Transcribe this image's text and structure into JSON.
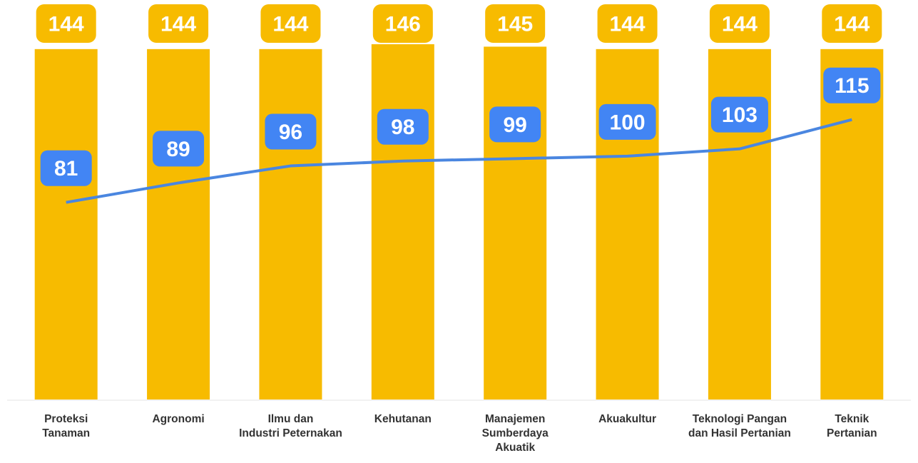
{
  "chart_data": {
    "type": "bar",
    "categories": [
      "Proteksi Tanaman",
      "Agronomi",
      "Ilmu dan Industri Peternakan",
      "Kehutanan",
      "Manajemen Sumberdaya Akuatik",
      "Akuakultur",
      "Teknologi Pangan dan Hasil Pertanian",
      "Teknik Pertanian"
    ],
    "series": [
      {
        "type": "bar",
        "color": "#f7bb00",
        "values": [
          144,
          144,
          144,
          146,
          145,
          144,
          144,
          144
        ]
      },
      {
        "type": "line",
        "color": "#4a86e0",
        "values": [
          81,
          89,
          96,
          98,
          99,
          100,
          103,
          115
        ]
      }
    ]
  }
}
